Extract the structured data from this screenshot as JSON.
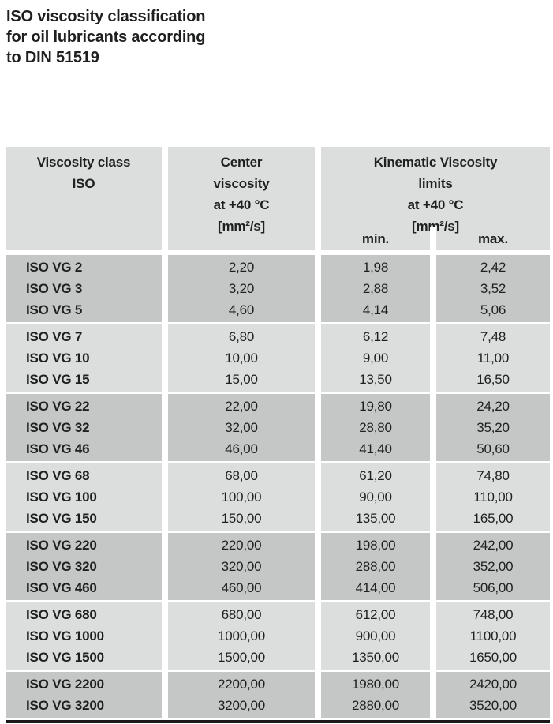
{
  "title": {
    "lines": [
      "ISO viscosity classification",
      "for oil lubricants according",
      "to DIN 51519"
    ]
  },
  "table": {
    "header": {
      "col1": [
        "Viscosity class",
        "ISO"
      ],
      "col2": [
        "Center",
        "viscosity",
        "at +40 °C",
        "[mm²/s]"
      ],
      "col34": [
        "Kinematic Viscosity",
        "limits",
        "at +40 °C",
        "[mm²/s]"
      ],
      "min_label": "min.",
      "max_label": "max."
    },
    "groups": [
      {
        "shade": "dark",
        "rows": [
          {
            "label": "ISO VG 2",
            "center": "2,20",
            "min": "1,98",
            "max": "2,42"
          },
          {
            "label": "ISO VG 3",
            "center": "3,20",
            "min": "2,88",
            "max": "3,52"
          },
          {
            "label": "ISO VG 5",
            "center": "4,60",
            "min": "4,14",
            "max": "5,06"
          }
        ]
      },
      {
        "shade": "light",
        "rows": [
          {
            "label": "ISO VG 7",
            "center": "6,80",
            "min": "6,12",
            "max": "7,48"
          },
          {
            "label": "ISO VG 10",
            "center": "10,00",
            "min": "9,00",
            "max": "11,00"
          },
          {
            "label": "ISO VG 15",
            "center": "15,00",
            "min": "13,50",
            "max": "16,50"
          }
        ]
      },
      {
        "shade": "dark",
        "rows": [
          {
            "label": "ISO VG 22",
            "center": "22,00",
            "min": "19,80",
            "max": "24,20"
          },
          {
            "label": "ISO VG 32",
            "center": "32,00",
            "min": "28,80",
            "max": "35,20"
          },
          {
            "label": "ISO VG 46",
            "center": "46,00",
            "min": "41,40",
            "max": "50,60"
          }
        ]
      },
      {
        "shade": "light",
        "rows": [
          {
            "label": "ISO VG 68",
            "center": "68,00",
            "min": "61,20",
            "max": "74,80"
          },
          {
            "label": "ISO VG 100",
            "center": "100,00",
            "min": "90,00",
            "max": "110,00"
          },
          {
            "label": "ISO VG 150",
            "center": "150,00",
            "min": "135,00",
            "max": "165,00"
          }
        ]
      },
      {
        "shade": "dark",
        "rows": [
          {
            "label": "ISO VG 220",
            "center": "220,00",
            "min": "198,00",
            "max": "242,00"
          },
          {
            "label": "ISO VG 320",
            "center": "320,00",
            "min": "288,00",
            "max": "352,00"
          },
          {
            "label": "ISO VG 460",
            "center": "460,00",
            "min": "414,00",
            "max": "506,00"
          }
        ]
      },
      {
        "shade": "light",
        "rows": [
          {
            "label": "ISO VG 680",
            "center": "680,00",
            "min": "612,00",
            "max": "748,00"
          },
          {
            "label": "ISO VG 1000",
            "center": "1000,00",
            "min": "900,00",
            "max": "1100,00"
          },
          {
            "label": "ISO VG 1500",
            "center": "1500,00",
            "min": "1350,00",
            "max": "1650,00"
          }
        ]
      },
      {
        "shade": "dark",
        "rows": [
          {
            "label": "ISO VG 2200",
            "center": "2200,00",
            "min": "1980,00",
            "max": "2420,00"
          },
          {
            "label": "ISO VG 3200",
            "center": "3200,00",
            "min": "2880,00",
            "max": "3520,00"
          }
        ]
      }
    ]
  },
  "colors": {
    "light_gray": "#dcdddd",
    "dark_gray": "#c5c6c6",
    "rule": "#1a1a1a",
    "text": "#1e1f1f"
  }
}
